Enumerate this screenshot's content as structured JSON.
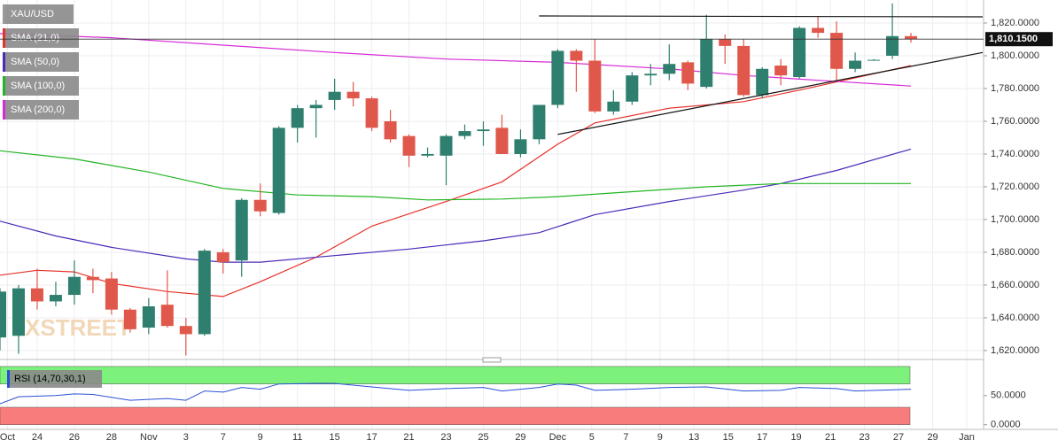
{
  "chart_data": {
    "type": "candlestick",
    "title": "XAU/USD",
    "watermark": "XSTREET",
    "open": [
      1628,
      1629,
      1658,
      1650,
      1654,
      1665,
      1664,
      1645,
      1634,
      1648,
      1635,
      1630,
      1680,
      1675,
      1712,
      1704,
      1756,
      1768,
      1773,
      1778,
      1774,
      1760,
      1751,
      1739,
      1739,
      1751,
      1754,
      1756,
      1740,
      1749,
      1770,
      1803,
      1797,
      1766,
      1772,
      1788,
      1789,
      1796,
      1781,
      1810,
      1806,
      1776,
      1794,
      1787,
      1817,
      1814,
      1792,
      1797,
      1800,
      1812
    ],
    "high": [
      1658,
      1660,
      1670,
      1662,
      1675,
      1670,
      1668,
      1646,
      1652,
      1669,
      1640,
      1682,
      1682,
      1713,
      1722,
      1757,
      1770,
      1773,
      1786,
      1784,
      1775,
      1767,
      1752,
      1744,
      1752,
      1758,
      1760,
      1764,
      1755,
      1770,
      1804,
      1804,
      1810,
      1779,
      1790,
      1795,
      1807,
      1797,
      1825,
      1813,
      1810,
      1793,
      1798,
      1818,
      1824,
      1821,
      1802,
      1798,
      1832,
      1814
    ],
    "low": [
      1620,
      1618,
      1645,
      1647,
      1648,
      1655,
      1642,
      1631,
      1630,
      1634,
      1617,
      1629,
      1667,
      1665,
      1702,
      1703,
      1747,
      1750,
      1767,
      1769,
      1754,
      1747,
      1732,
      1738,
      1721,
      1749,
      1745,
      1740,
      1738,
      1746,
      1768,
      1778,
      1765,
      1764,
      1770,
      1782,
      1785,
      1779,
      1780,
      1795,
      1775,
      1774,
      1782,
      1786,
      1811,
      1785,
      1790,
      1797,
      1798,
      1808
    ],
    "close": [
      1656,
      1658,
      1650,
      1654,
      1665,
      1663,
      1645,
      1633,
      1647,
      1635,
      1630,
      1681,
      1674,
      1712,
      1705,
      1756,
      1768,
      1770,
      1778,
      1774,
      1756,
      1749,
      1739,
      1740,
      1751,
      1754,
      1755,
      1740,
      1749,
      1770,
      1803,
      1797,
      1766,
      1772,
      1788,
      1789,
      1795,
      1783,
      1810,
      1806,
      1776,
      1792,
      1788,
      1817,
      1814,
      1792,
      1797,
      1797.5,
      1812,
      1810
    ],
    "up_color": "#2f7f6f",
    "down_color": "#e0584b",
    "series": [
      {
        "name": "SMA (21,0)",
        "color": "#e8302a",
        "x": [
          0,
          2,
          4,
          6,
          9,
          12,
          14,
          17,
          20,
          24,
          27,
          30,
          32,
          36,
          40,
          43,
          45,
          49
        ],
        "values": [
          1666,
          1669,
          1668,
          1661,
          1656,
          1653,
          1662,
          1677,
          1696,
          1711,
          1723,
          1746,
          1759,
          1768,
          1772,
          1779,
          1784,
          1794
        ]
      },
      {
        "name": "SMA (50,0)",
        "color": "#4b2ab8",
        "x": [
          0,
          3,
          6,
          10,
          12,
          14,
          18,
          22,
          26,
          29,
          32,
          36,
          40,
          42,
          45,
          49
        ],
        "values": [
          1699,
          1690,
          1683,
          1676,
          1674,
          1674,
          1678,
          1682,
          1687,
          1692,
          1703,
          1711,
          1718,
          1722,
          1730,
          1743
        ]
      },
      {
        "name": "SMA (100,0)",
        "color": "#22b422",
        "x": [
          0,
          4,
          8,
          12,
          16,
          20,
          23,
          27,
          30,
          34,
          38,
          42,
          49
        ],
        "values": [
          1742,
          1737,
          1729,
          1719,
          1715,
          1714,
          1712,
          1712.5,
          1714,
          1717,
          1720,
          1722,
          1722
        ]
      },
      {
        "name": "SMA (200,0)",
        "color": "#d62ad6",
        "x": [
          0,
          6,
          12,
          18,
          24,
          30,
          36,
          40,
          44,
          49
        ],
        "values": [
          1813.5,
          1811,
          1806.5,
          1802,
          1798,
          1796,
          1792,
          1788,
          1785,
          1781.5
        ]
      }
    ],
    "trendlines": [
      {
        "x": [
          29,
          52.86
        ],
        "values": [
          1824.3,
          1823.8
        ]
      },
      {
        "x": [
          30,
          52.86
        ],
        "values": [
          1752,
          1802
        ]
      }
    ],
    "last_price": 1810.15,
    "last_price_label": "1,810.1500",
    "ylim": [
      1615.1,
      1834.05
    ],
    "yticks": [
      {
        "value": 1620,
        "label": "1,620.0000"
      },
      {
        "value": 1640,
        "label": "1,640.0000"
      },
      {
        "value": 1660,
        "label": "1,660.0000"
      },
      {
        "value": 1680,
        "label": "1,680.0000"
      },
      {
        "value": 1700,
        "label": "1,700.0000"
      },
      {
        "value": 1720,
        "label": "1,720.0000"
      },
      {
        "value": 1740,
        "label": "1,740.0000"
      },
      {
        "value": 1760,
        "label": "1,760.0000"
      },
      {
        "value": 1780,
        "label": "1,780.0000"
      },
      {
        "value": 1800,
        "label": "1,800.0000"
      },
      {
        "value": 1820,
        "label": "1,820.0000"
      }
    ],
    "xticks": [
      {
        "value": 0.4,
        "label": "Oct"
      },
      {
        "value": 2,
        "label": "24"
      },
      {
        "value": 4,
        "label": "26"
      },
      {
        "value": 6,
        "label": "28"
      },
      {
        "value": 8,
        "label": "Nov"
      },
      {
        "value": 10,
        "label": "3"
      },
      {
        "value": 12,
        "label": "7"
      },
      {
        "value": 14,
        "label": "9"
      },
      {
        "value": 16,
        "label": "11"
      },
      {
        "value": 18,
        "label": "15"
      },
      {
        "value": 20,
        "label": "17"
      },
      {
        "value": 22,
        "label": "21"
      },
      {
        "value": 24,
        "label": "23"
      },
      {
        "value": 26,
        "label": "25"
      },
      {
        "value": 28,
        "label": "29"
      },
      {
        "value": 30,
        "label": "Dec"
      },
      {
        "value": 31.83,
        "label": "5"
      },
      {
        "value": 33.67,
        "label": "7"
      },
      {
        "value": 35.5,
        "label": "9"
      },
      {
        "value": 37.33,
        "label": "13"
      },
      {
        "value": 39.17,
        "label": "15"
      },
      {
        "value": 41,
        "label": "17"
      },
      {
        "value": 42.83,
        "label": "19"
      },
      {
        "value": 44.67,
        "label": "21"
      },
      {
        "value": 46.5,
        "label": "23"
      },
      {
        "value": 48.33,
        "label": "27"
      },
      {
        "value": 50.17,
        "label": "29"
      },
      {
        "value": 52,
        "label": "Jan"
      }
    ],
    "grid": true,
    "rsi": {
      "name": "RSI (14,70,30,1)",
      "color": "#2a4fd6",
      "x": [
        0,
        1,
        3,
        4,
        5,
        7,
        9,
        10,
        11,
        12,
        13,
        14,
        15,
        17,
        18,
        20,
        22,
        24,
        26,
        27,
        29,
        30,
        31,
        32,
        34,
        36,
        38,
        40,
        42,
        43,
        45,
        46,
        49
      ],
      "values": [
        36,
        48,
        50,
        53,
        52,
        42,
        45,
        42,
        58,
        56,
        64,
        61,
        70,
        71,
        71,
        65,
        59,
        62,
        64,
        58,
        64,
        70,
        68,
        59,
        61,
        64,
        65,
        58,
        59,
        64,
        62,
        58,
        61
      ],
      "overbought": [
        70,
        100
      ],
      "oversold": [
        0,
        30
      ],
      "ylim": [
        -8,
        109
      ],
      "yticks": [
        {
          "value": 0,
          "label": "0.0000"
        },
        {
          "value": 50,
          "label": "50.0000"
        }
      ]
    }
  }
}
